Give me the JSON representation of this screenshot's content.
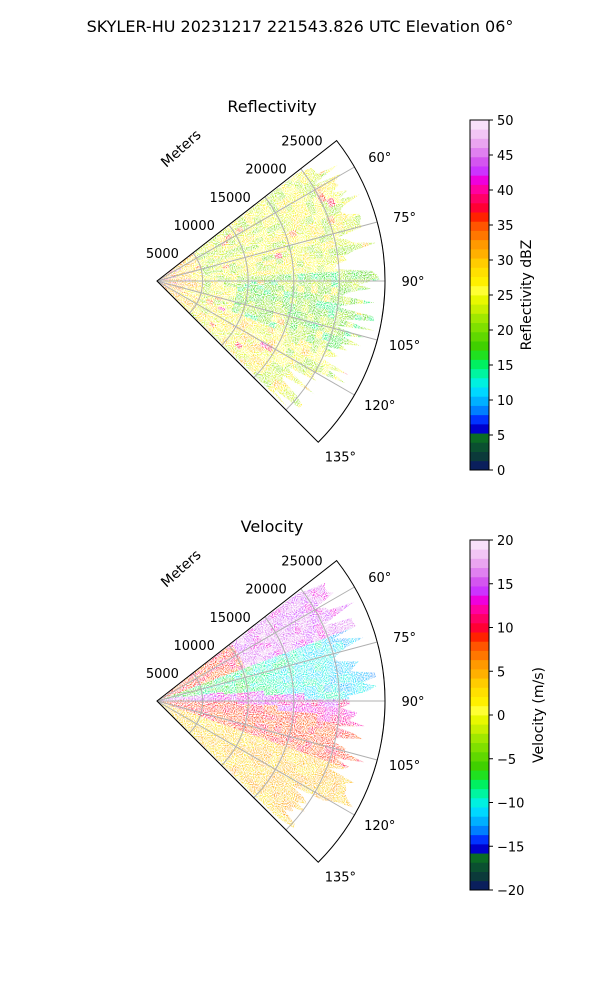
{
  "figure": {
    "suptitle": "SKYLER-HU  20231217  221543.826 UTC Elevation 06°"
  },
  "chart_data": [
    {
      "type": "heatmap",
      "projection": "polar-sector",
      "title": "Reflectivity",
      "range_axis_label": "Meters",
      "range_ticks": [
        "5000",
        "10000",
        "15000",
        "20000",
        "25000"
      ],
      "range_tick_values": [
        5000,
        10000,
        15000,
        20000,
        25000
      ],
      "range_max": 25000,
      "azimuth_ticks": [
        "60°",
        "75°",
        "90°",
        "105°",
        "120°",
        "135°"
      ],
      "azimuth_tick_values": [
        60,
        75,
        90,
        105,
        120,
        135
      ],
      "azimuth_range": [
        52,
        135
      ],
      "grid": true,
      "colorbar": {
        "label": "Reflectivity dBZ",
        "vmin": 0,
        "vmax": 50,
        "ticks": [
          "0",
          "5",
          "10",
          "15",
          "20",
          "25",
          "30",
          "35",
          "40",
          "45",
          "50"
        ],
        "tick_values": [
          0,
          5,
          10,
          15,
          20,
          25,
          30,
          35,
          40,
          45,
          50
        ],
        "colors": [
          "#0a1f5c",
          "#0b3a3a",
          "#0a5030",
          "#0b6b24",
          "#0000cc",
          "#0033ff",
          "#0080ff",
          "#00b0ff",
          "#00d8ff",
          "#00f0e0",
          "#00f5a0",
          "#00f060",
          "#20e020",
          "#40d000",
          "#60d800",
          "#80e000",
          "#a0e800",
          "#c8f000",
          "#e8f800",
          "#ffff33",
          "#fff000",
          "#ffe000",
          "#ffcc00",
          "#ffb000",
          "#ff9900",
          "#ff7700",
          "#ff5500",
          "#ff2200",
          "#ff0033",
          "#ff0066",
          "#ff00a0",
          "#ee00dd",
          "#cc33ff",
          "#d455f0",
          "#e080f0",
          "#eaa5f0",
          "#f2c5f5",
          "#f8e0fa"
        ],
        "position": "right"
      },
      "pattern": "Reflectivity mostly 20–30 dBZ across the sector; higher values (30–40 dBZ) near the radar and in scattered cells to the lower-left; lower values (15–22 dBZ) around azimuth 90°–110° at mid ranges."
    },
    {
      "type": "heatmap",
      "projection": "polar-sector",
      "title": "Velocity",
      "range_axis_label": "Meters",
      "range_ticks": [
        "5000",
        "10000",
        "15000",
        "20000",
        "25000"
      ],
      "range_tick_values": [
        5000,
        10000,
        15000,
        20000,
        25000
      ],
      "range_max": 25000,
      "azimuth_ticks": [
        "60°",
        "75°",
        "90°",
        "105°",
        "120°",
        "135°"
      ],
      "azimuth_tick_values": [
        60,
        75,
        90,
        105,
        120,
        135
      ],
      "azimuth_range": [
        52,
        135
      ],
      "grid": true,
      "colorbar": {
        "label": "Velocity (m/s)",
        "vmin": -20,
        "vmax": 20,
        "ticks": [
          "−20",
          "−15",
          "−10",
          "−5",
          "0",
          "5",
          "10",
          "15",
          "20"
        ],
        "tick_values": [
          -20,
          -15,
          -10,
          -5,
          0,
          5,
          10,
          15,
          20
        ],
        "colors": [
          "#0a1f5c",
          "#0b3a3a",
          "#0a5030",
          "#0b6b24",
          "#0000cc",
          "#0033ff",
          "#0080ff",
          "#00b0ff",
          "#00d8ff",
          "#00f0e0",
          "#00f5a0",
          "#00f060",
          "#20e020",
          "#40d000",
          "#60d800",
          "#80e000",
          "#a0e800",
          "#c8f000",
          "#e8f800",
          "#ffff33",
          "#fff000",
          "#ffe000",
          "#ffcc00",
          "#ffb000",
          "#ff9900",
          "#ff7700",
          "#ff5500",
          "#ff2200",
          "#ff0033",
          "#ff0066",
          "#ff00a0",
          "#ee00dd",
          "#cc33ff",
          "#d455f0",
          "#e080f0",
          "#eaa5f0",
          "#f2c5f5",
          "#f8e0fa"
        ],
        "position": "right"
      },
      "pattern": "Velocity field: +10 to +20 m/s at azimuth 55°–70°, about −5 to −12 m/s at 72°–90°, a strong +12 to +18 m/s band just beyond 90°–100°, and +3 to +10 m/s for azimuths 100°–135°."
    }
  ]
}
